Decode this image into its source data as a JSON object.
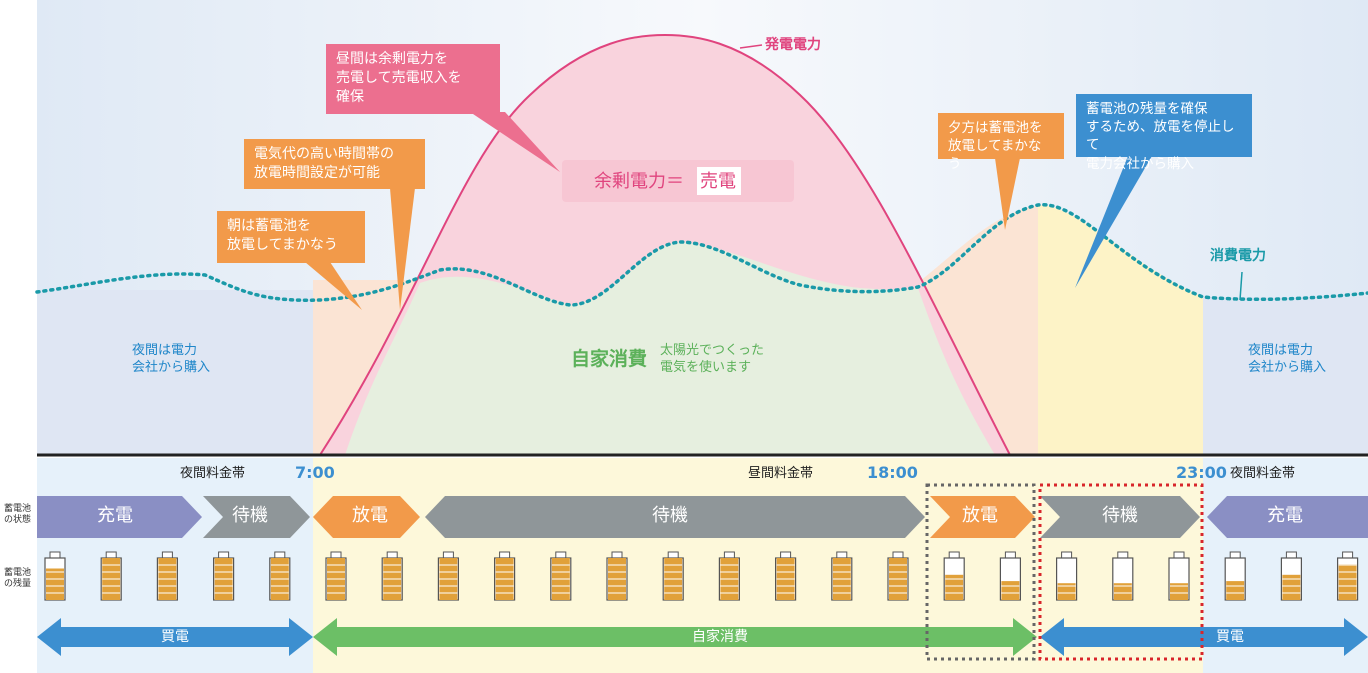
{
  "curves": {
    "generation_label": "発電電力",
    "consumption_label": "消費電力"
  },
  "callouts": {
    "noon_surplus": "昼間は余剰電力を\n売電して売電収入を\n確保",
    "high_rate": "電気代の高い時間帯の\n放電時間設定が可能",
    "morning": "朝は蓄電池を\n放電してまかなう",
    "evening": "夕方は蓄電池を\n放電してまかなう",
    "reserve": "蓄電池の残量を確保\nするため、放電を停止して\n電力会社から購入"
  },
  "zones": {
    "surplus_prefix": "余剰電力＝",
    "surplus_highlight": "売電",
    "self_consumption_title": "自家消費",
    "self_consumption_desc": "太陽光でつくった\n電気を使います",
    "night_left": "夜間は電力\n会社から購入",
    "night_right": "夜間は電力\n会社から購入"
  },
  "timeline": {
    "night_rate_left": "夜間料金帯",
    "time_7": "7:00",
    "day_rate": "昼間料金帯",
    "time_18": "18:00",
    "time_23": "23:00",
    "night_rate_right": "夜間料金帯"
  },
  "row_labels": {
    "battery_state": "蓄電池\nの状態",
    "battery_level": "蓄電池\nの残量"
  },
  "states": [
    {
      "label": "充電",
      "color": "#8a8fc4"
    },
    {
      "label": "待機",
      "color": "#8f9699"
    },
    {
      "label": "放電",
      "color": "#f29a4a"
    },
    {
      "label": "待機",
      "color": "#8f9699"
    },
    {
      "label": "放電",
      "color": "#f29a4a"
    },
    {
      "label": "待機",
      "color": "#8f9699"
    },
    {
      "label": "充電",
      "color": "#8a8fc4"
    }
  ],
  "battery_levels": [
    0.75,
    1.0,
    1.0,
    1.0,
    1.0,
    1.0,
    1.0,
    1.0,
    1.0,
    1.0,
    1.0,
    1.0,
    1.0,
    1.0,
    1.0,
    1.0,
    0.6,
    0.45,
    0.4,
    0.4,
    0.4,
    0.45,
    0.6,
    0.85
  ],
  "flows": {
    "buy_left": "買電",
    "self_consumption": "自家消費",
    "buy_right": "買電"
  },
  "colors": {
    "generation": "#e0447e",
    "consumption": "#1a9aa8",
    "surplus_fill": "#f9d3dd",
    "self_fill": "#e6efdf",
    "night_fill": "#dfe6f3",
    "morning_fill": "#fbe4d4",
    "evening_fill": "#fdf3c7",
    "battery_fill": "#e1a13a",
    "buy_arrow": "#3c8fd0",
    "self_arrow": "#6cbf66",
    "callout_pink": "#ec6f8f",
    "callout_orange": "#f29a4a",
    "callout_blue": "#3c8fd0",
    "accent_blue": "#3c8fd0",
    "label_blue": "#1f86c9",
    "green_text": "#5cb15a"
  }
}
